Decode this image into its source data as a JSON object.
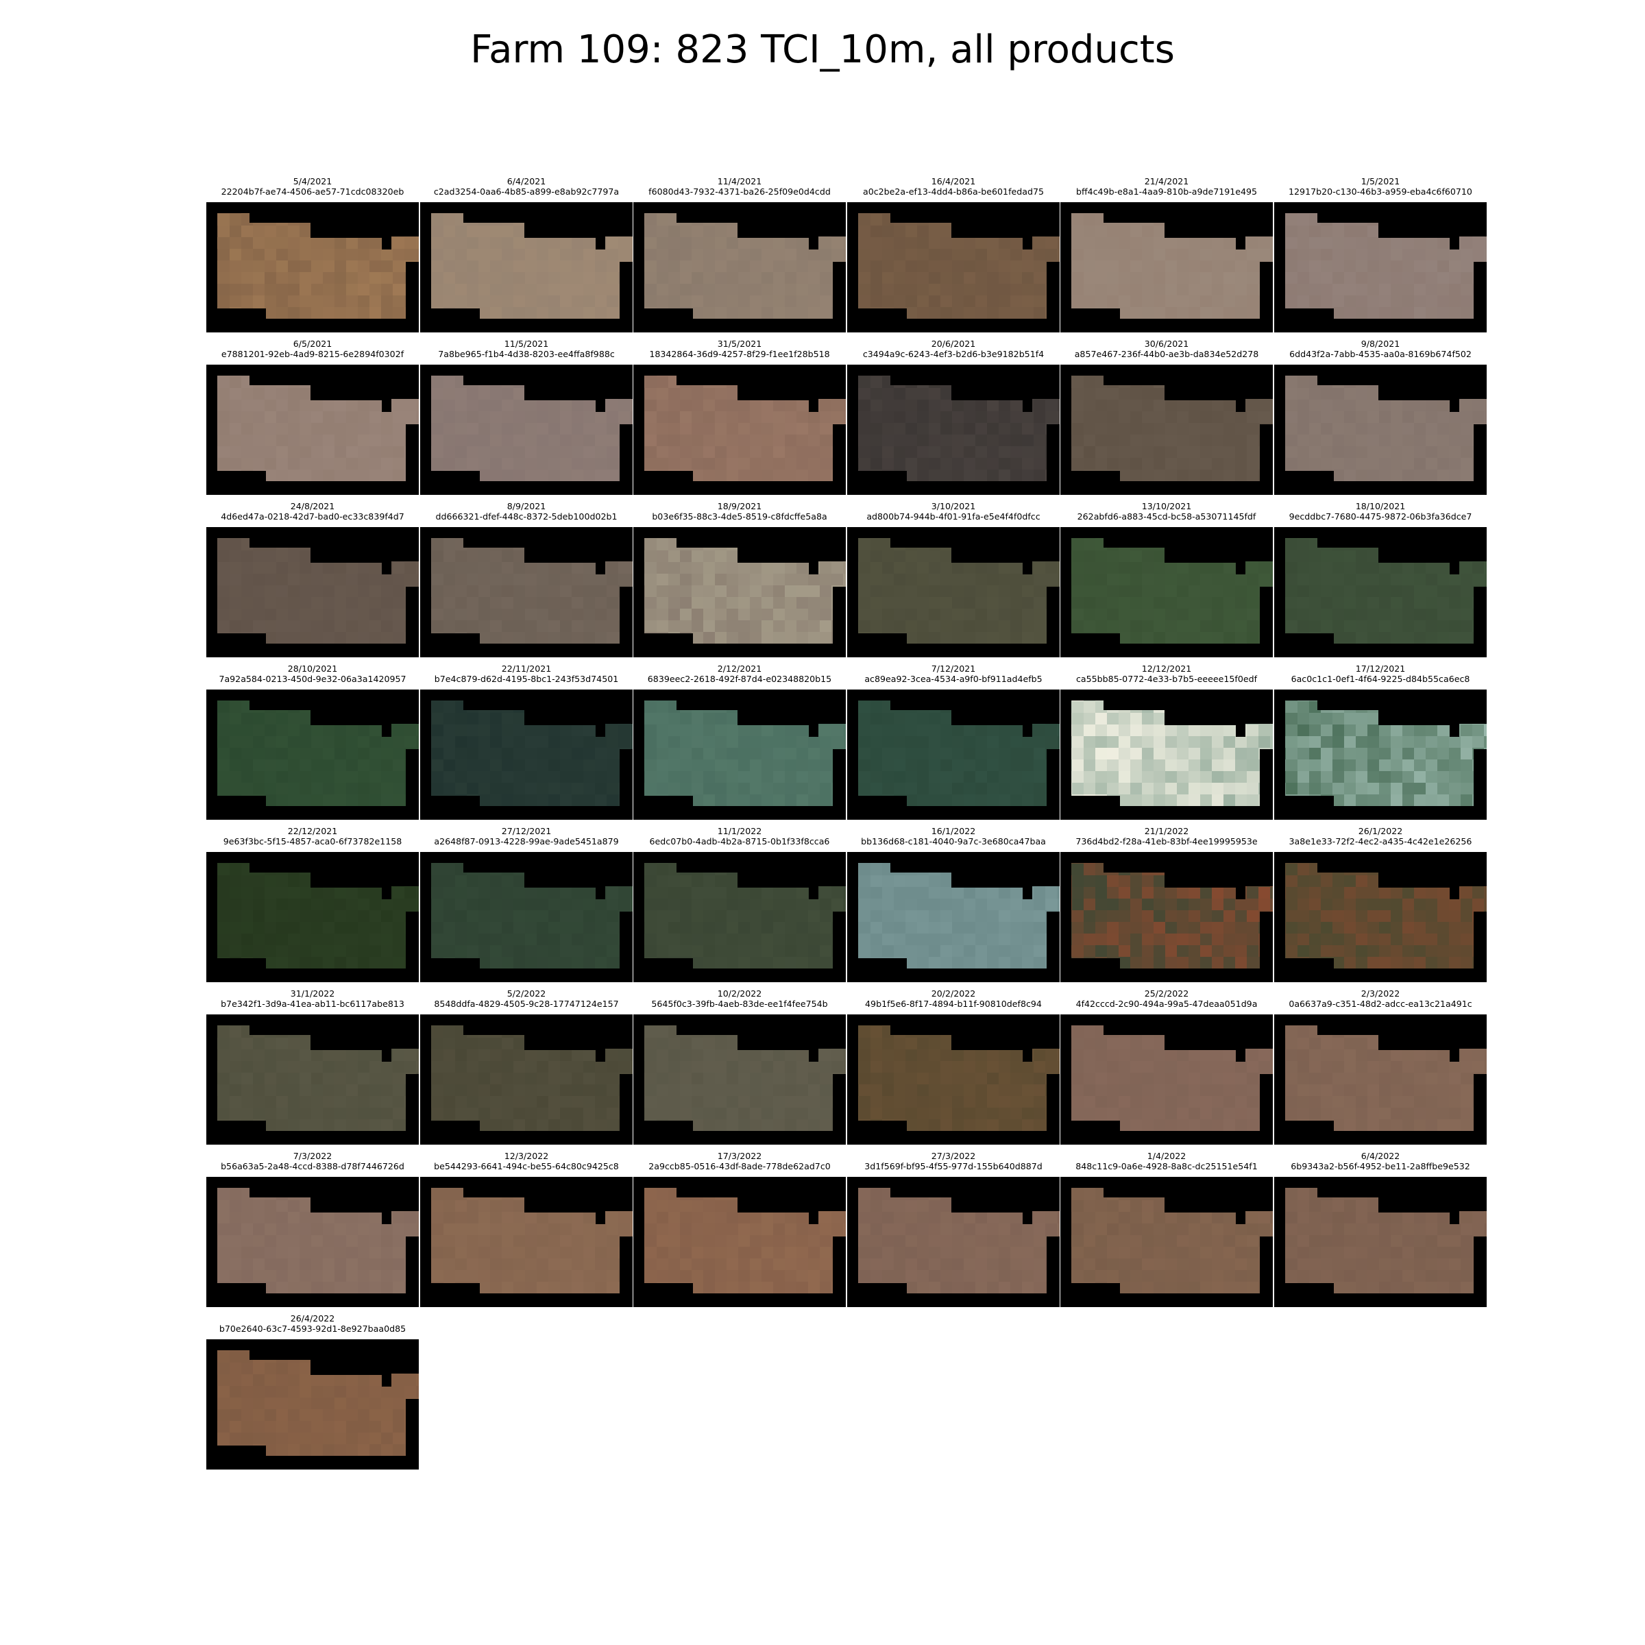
{
  "title": "Farm 109: 823 TCI_10m, all products",
  "products": [
    {
      "date": "5/4/2021",
      "id": "22204b7f-ae74-4506-ae57-71cdc08320eb",
      "tone": "#876649",
      "tone2": "#a07a55"
    },
    {
      "date": "6/4/2021",
      "id": "c2ad3254-0aa6-4b85-a899-e8ab92c7797a",
      "tone": "#968371",
      "tone2": "#a08a74"
    },
    {
      "date": "11/4/2021",
      "id": "f6080d43-7932-4371-ba26-25f09e0d4cdd",
      "tone": "#8a7a6c",
      "tone2": "#958372"
    },
    {
      "date": "16/4/2021",
      "id": "a0c2be2a-ef13-4dd4-b86a-be601fedad75",
      "tone": "#6e5641",
      "tone2": "#7b6048"
    },
    {
      "date": "21/4/2021",
      "id": "bff4c49b-e8a1-4aa9-810b-a9de7191e495",
      "tone": "#968274",
      "tone2": "#9b897b"
    },
    {
      "date": "1/5/2021",
      "id": "12917b20-c130-46b3-a959-eba4c6f60710",
      "tone": "#8d7a72",
      "tone2": "#94837c"
    },
    {
      "date": "6/5/2021",
      "id": "e7881201-92eb-4ad9-8215-6e2894f0302f",
      "tone": "#927d71",
      "tone2": "#9a857a"
    },
    {
      "date": "11/5/2021",
      "id": "7a8be965-f1b4-4d38-8203-ee4ffa8f988c",
      "tone": "#877671",
      "tone2": "#8f7d76"
    },
    {
      "date": "31/5/2021",
      "id": "18342864-36d9-4257-8f29-f1ee1f28b518",
      "tone": "#8c6c5c",
      "tone2": "#9a7866"
    },
    {
      "date": "20/6/2021",
      "id": "c3494a9c-6243-4ef3-b2d6-b3e9182b51f4",
      "tone": "#3b3634",
      "tone2": "#4a4340"
    },
    {
      "date": "30/6/2021",
      "id": "a857e467-236f-44b0-ae3b-da834e52d278",
      "tone": "#5f5245",
      "tone2": "#675a4d"
    },
    {
      "date": "9/8/2021",
      "id": "6dd43f2a-7abb-4535-aa0a-8169b674f502",
      "tone": "#83736b",
      "tone2": "#8b7b72"
    },
    {
      "date": "24/8/2021",
      "id": "4d6ed47a-0218-42d7-bad0-ec33c839f4d7",
      "tone": "#615349",
      "tone2": "#685a4f"
    },
    {
      "date": "8/9/2021",
      "id": "dd666321-dfef-448c-8372-5deb100d02b1",
      "tone": "#6b5f54",
      "tone2": "#75685d"
    },
    {
      "date": "18/9/2021",
      "id": "b03e6f35-88c3-4de5-8519-c8fdcffe5a8a",
      "tone": "#8a7d70",
      "tone2": "#a69e8a"
    },
    {
      "date": "3/10/2021",
      "id": "ad800b74-944b-4f01-91fa-e5e4f4f0dfcc",
      "tone": "#4c4c3a",
      "tone2": "#545440"
    },
    {
      "date": "13/10/2021",
      "id": "262abfd6-a883-45cd-bc58-a53071145fdf",
      "tone": "#3a5234",
      "tone2": "#405a3a"
    },
    {
      "date": "18/10/2021",
      "id": "9ecddbc7-7680-4475-9872-06b3fa36dce7",
      "tone": "#3a4c36",
      "tone2": "#40543c"
    },
    {
      "date": "28/10/2021",
      "id": "7a92a584-0213-450d-9e32-06a3a1420957",
      "tone": "#2c4a30",
      "tone2": "#335236"
    },
    {
      "date": "22/11/2021",
      "id": "b7e4c879-d62d-4195-8bc1-243f53d74501",
      "tone": "#213430",
      "tone2": "#2a3d37"
    },
    {
      "date": "2/12/2021",
      "id": "6839eec2-2618-492f-87d4-e02348820b15",
      "tone": "#4a6e60",
      "tone2": "#557a6a"
    },
    {
      "date": "7/12/2021",
      "id": "ac89ea92-3cea-4534-a9f0-bf911ad4efb5",
      "tone": "#2c4a3c",
      "tone2": "#325244"
    },
    {
      "date": "12/12/2021",
      "id": "ca55bb85-0772-4e33-b7b5-eeeee15f0edf",
      "tone": "#f4f2e4",
      "tone2": "#9ab0a0"
    },
    {
      "date": "17/12/2021",
      "id": "6ac0c1c1-0ef1-4f64-9225-d84b55ca6ec8",
      "tone": "#4a6e58",
      "tone2": "#9ab8ac"
    },
    {
      "date": "22/12/2021",
      "id": "9e63f3bc-5f15-4857-aca0-6f73782e1158",
      "tone": "#26381e",
      "tone2": "#2c4024"
    },
    {
      "date": "27/12/2021",
      "id": "a2648f87-0913-4228-99ae-9ade5451a879",
      "tone": "#2e4232",
      "tone2": "#344a38"
    },
    {
      "date": "11/1/2022",
      "id": "6edc07b0-4adb-4b2a-8715-0b1f33f8cca6",
      "tone": "#3a4634",
      "tone2": "#424e3a"
    },
    {
      "date": "16/1/2022",
      "id": "bb136d68-c181-4040-9a7c-3e680ca47baa",
      "tone": "#6c8a8a",
      "tone2": "#7a9898"
    },
    {
      "date": "21/1/2022",
      "id": "736d4bd2-f28a-41eb-83bf-4ee19995953e",
      "tone": "#3e4834",
      "tone2": "#8a4a30"
    },
    {
      "date": "26/1/2022",
      "id": "3a8e1e33-72f2-4ec2-a435-4c42e1e26256",
      "tone": "#4a4a30",
      "tone2": "#7a4a30"
    },
    {
      "date": "31/1/2022",
      "id": "b7e342f1-3d9a-41ea-ab11-bc6117abe813",
      "tone": "#50503e",
      "tone2": "#5a5846"
    },
    {
      "date": "5/2/2022",
      "id": "8548ddfa-4829-4505-9c28-17747124e157",
      "tone": "#4a4836",
      "tone2": "#54503e"
    },
    {
      "date": "10/2/2022",
      "id": "5645f0c3-39fb-4aeb-83de-ee1f4fee754b",
      "tone": "#5a5848",
      "tone2": "#625e4e"
    },
    {
      "date": "20/2/2022",
      "id": "49b1f5e6-8f17-4894-b11f-90810def8c94",
      "tone": "#5a4a30",
      "tone2": "#6a5236"
    },
    {
      "date": "25/2/2022",
      "id": "4f42cccd-2c90-494a-99a5-47deaa051d9a",
      "tone": "#806456",
      "tone2": "#88695b"
    },
    {
      "date": "2/3/2022",
      "id": "0a6637a9-c351-48d2-adcc-ea13c21a491c",
      "tone": "#7e6252",
      "tone2": "#886a58"
    },
    {
      "date": "7/3/2022",
      "id": "b56a63a5-2a48-4ccd-8388-d78f7446726d",
      "tone": "#846a5e",
      "tone2": "#8c7264"
    },
    {
      "date": "12/3/2022",
      "id": "be544293-6641-494c-be55-64c80c9425c8",
      "tone": "#84644e",
      "tone2": "#8e6c54"
    },
    {
      "date": "17/3/2022",
      "id": "2a9ccb85-0516-43df-8ade-778de62ad7c0",
      "tone": "#86604a",
      "tone2": "#926a50"
    },
    {
      "date": "27/3/2022",
      "id": "3d1f569f-bf95-4f55-977d-155b640d887d",
      "tone": "#7e6254",
      "tone2": "#886a5a"
    },
    {
      "date": "1/4/2022",
      "id": "848c11c9-0a6e-4928-8a8c-dc25151e54f1",
      "tone": "#7a5e4a",
      "tone2": "#866650"
    },
    {
      "date": "6/4/2022",
      "id": "6b9343a2-b56f-4952-be11-2a8ffbe9e532",
      "tone": "#7a5e4e",
      "tone2": "#846654"
    },
    {
      "date": "26/4/2022",
      "id": "b70e2640-63c7-4593-92d1-8e927baa0d85",
      "tone": "#805c44",
      "tone2": "#8c6448"
    }
  ]
}
